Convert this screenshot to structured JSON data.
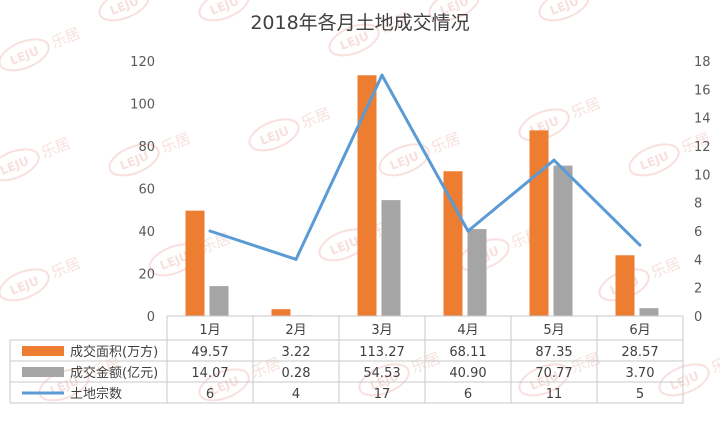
{
  "chart_data": {
    "type": "bar",
    "title": "2018年各月土地成交情况",
    "categories": [
      "1月",
      "2月",
      "3月",
      "4月",
      "5月",
      "6月"
    ],
    "series": [
      {
        "name": "成交面积(万方)",
        "type": "bar",
        "axis": "left",
        "color": "#ED7D31",
        "values": [
          49.57,
          3.22,
          113.27,
          68.11,
          87.35,
          28.57
        ],
        "labels": [
          "49.57",
          "3.22",
          "113.27",
          "68.11",
          "87.35",
          "28.57"
        ]
      },
      {
        "name": "成交金额(亿元)",
        "type": "bar",
        "axis": "left",
        "color": "#A5A5A5",
        "values": [
          14.07,
          0.28,
          54.53,
          40.9,
          70.77,
          3.7
        ],
        "labels": [
          "14.07",
          "0.28",
          "54.53",
          "40.90",
          "70.77",
          "3.70"
        ]
      },
      {
        "name": "土地宗数",
        "type": "line",
        "axis": "right",
        "color": "#5B9BD5",
        "values": [
          6,
          4,
          17,
          6,
          11,
          5
        ],
        "labels": [
          "6",
          "4",
          "17",
          "6",
          "11",
          "5"
        ]
      }
    ],
    "y_left": {
      "min": 0,
      "max": 120,
      "ticks": [
        "0",
        "20",
        "40",
        "60",
        "80",
        "100",
        "120"
      ]
    },
    "y_right": {
      "min": 0,
      "max": 18,
      "ticks": [
        "0",
        "2",
        "4",
        "6",
        "8",
        "10",
        "12",
        "14",
        "16",
        "18"
      ]
    },
    "grid": false,
    "legend": "data-table-bottom",
    "watermark": {
      "text": "乐居",
      "logo": "LEJU"
    }
  }
}
